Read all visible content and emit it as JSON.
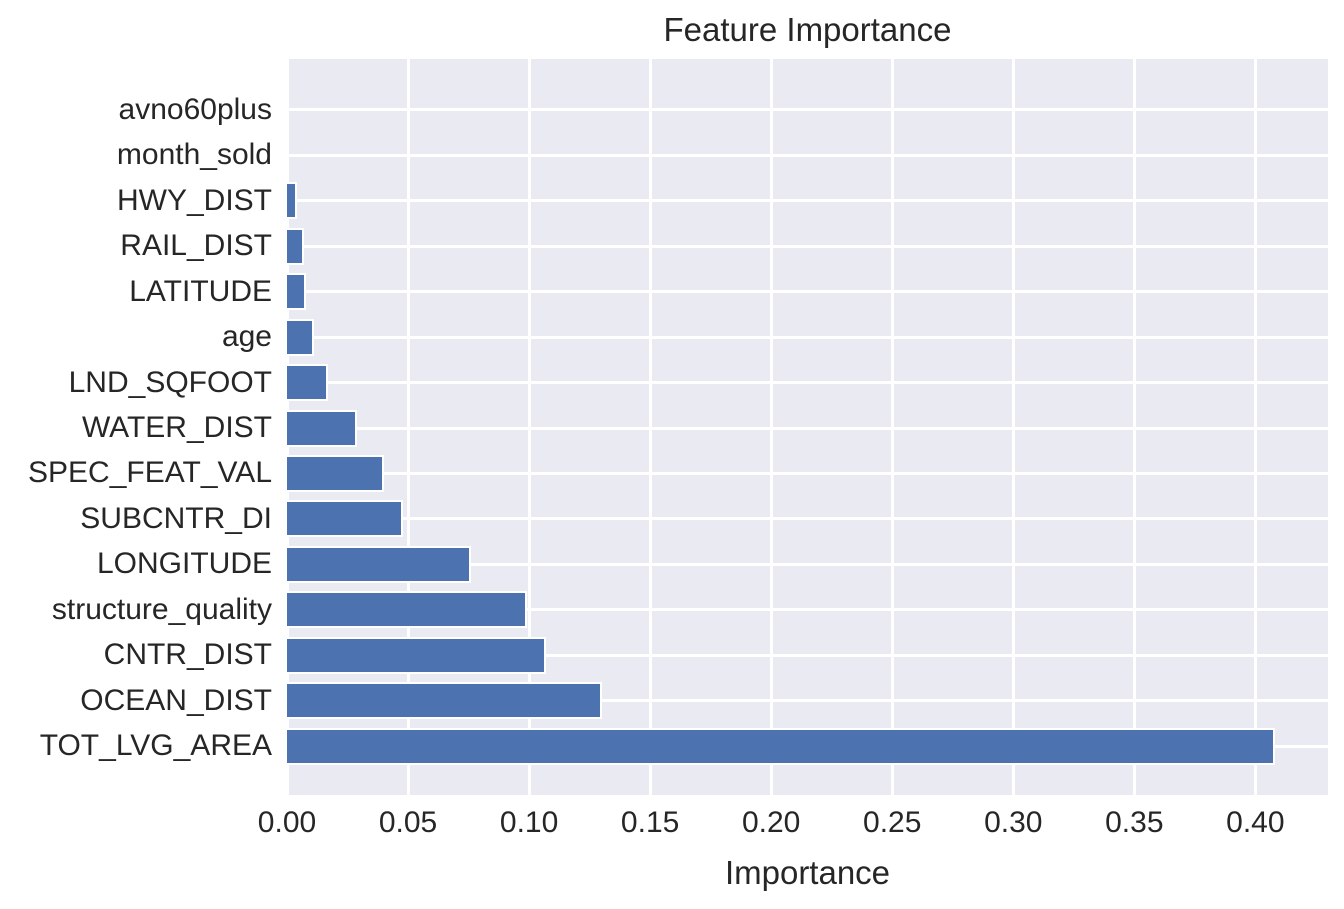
{
  "chart_data": {
    "type": "bar",
    "orientation": "horizontal",
    "title": "Feature Importance",
    "xlabel": "Importance",
    "ylabel": "",
    "categories_top_to_bottom": [
      "avno60plus",
      "month_sold",
      "HWY_DIST",
      "RAIL_DIST",
      "LATITUDE",
      "age",
      "LND_SQFOOT",
      "WATER_DIST",
      "SPEC_FEAT_VAL",
      "SUBCNTR_DI",
      "LONGITUDE",
      "structure_quality",
      "CNTR_DIST",
      "OCEAN_DIST",
      "TOT_LVG_AREA"
    ],
    "values": [
      0.0,
      0.0,
      0.004,
      0.007,
      0.008,
      0.011,
      0.017,
      0.029,
      0.04,
      0.048,
      0.076,
      0.099,
      0.107,
      0.13,
      0.408
    ],
    "xlim": [
      0,
      0.43
    ],
    "xticks": [
      "0.00",
      "0.05",
      "0.10",
      "0.15",
      "0.20",
      "0.25",
      "0.30",
      "0.35",
      "0.40"
    ],
    "grid": true,
    "legend": false,
    "colors": {
      "bar": "#4C72B0",
      "plot_background": "#EAEAF2",
      "gridline": "#FFFFFF",
      "text": "#262626",
      "figure_background": "#FFFFFF"
    }
  }
}
